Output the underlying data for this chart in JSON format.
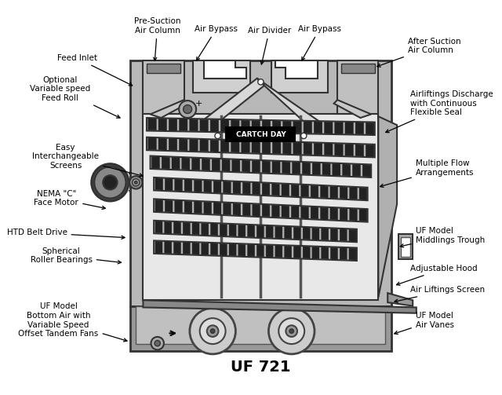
{
  "title": "UF 721",
  "background_color": "#ffffff",
  "labels": {
    "pre_suction": "Pre-Suction\nAir Column",
    "feed_inlet": "Feed Inlet",
    "optional_feed": "Optional\nVariable speed\nFeed Roll",
    "air_bypass_left": "Air Bypass",
    "air_divider": "Air Divider",
    "air_bypass_right": "Air Bypass",
    "after_suction": "After Suction\nAir Column",
    "airliftings_discharge": "Airliftings Discharge\nwith Continuous\nFlexible Seal",
    "easy_screens": "Easy\nInterchangeable\nScreens",
    "nema_motor": "NEMA \"C\"\nFace Motor",
    "htd_belt": "HTD Belt Drive",
    "spherical": "Spherical\nRoller Bearings",
    "multiple_flow": "Multiple Flow\nArrangements",
    "uf_middlings": "UF Model\nMiddlings Trough",
    "adjustable_hood": "Adjustable Hood",
    "air_liftings": "Air Liftings Screen",
    "uf_air_vanes": "UF Model\nAir Vanes",
    "uf_bottom": "UF Model\nBottom Air with\nVariable Speed\nOffset Tandem Fans",
    "cartech_day": "CARTCH DAY"
  }
}
